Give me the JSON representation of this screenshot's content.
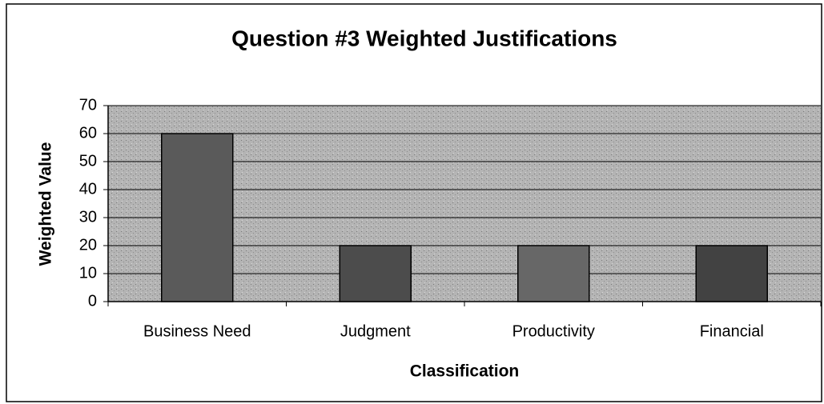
{
  "chart_data": {
    "type": "bar",
    "title": "Question #3 Weighted Justifications",
    "x_label": "Classification",
    "y_label": "Weighted Value",
    "categories": [
      "Business Need",
      "Judgment",
      "Productivity",
      "Financial"
    ],
    "values": [
      60,
      20,
      20,
      20
    ],
    "colors": [
      "#5a5a5a",
      "#4c4c4c",
      "#676767",
      "#424242"
    ],
    "ylim": [
      0,
      70
    ],
    "yticks": [
      0,
      10,
      20,
      30,
      40,
      50,
      60,
      70
    ],
    "grid": true
  }
}
